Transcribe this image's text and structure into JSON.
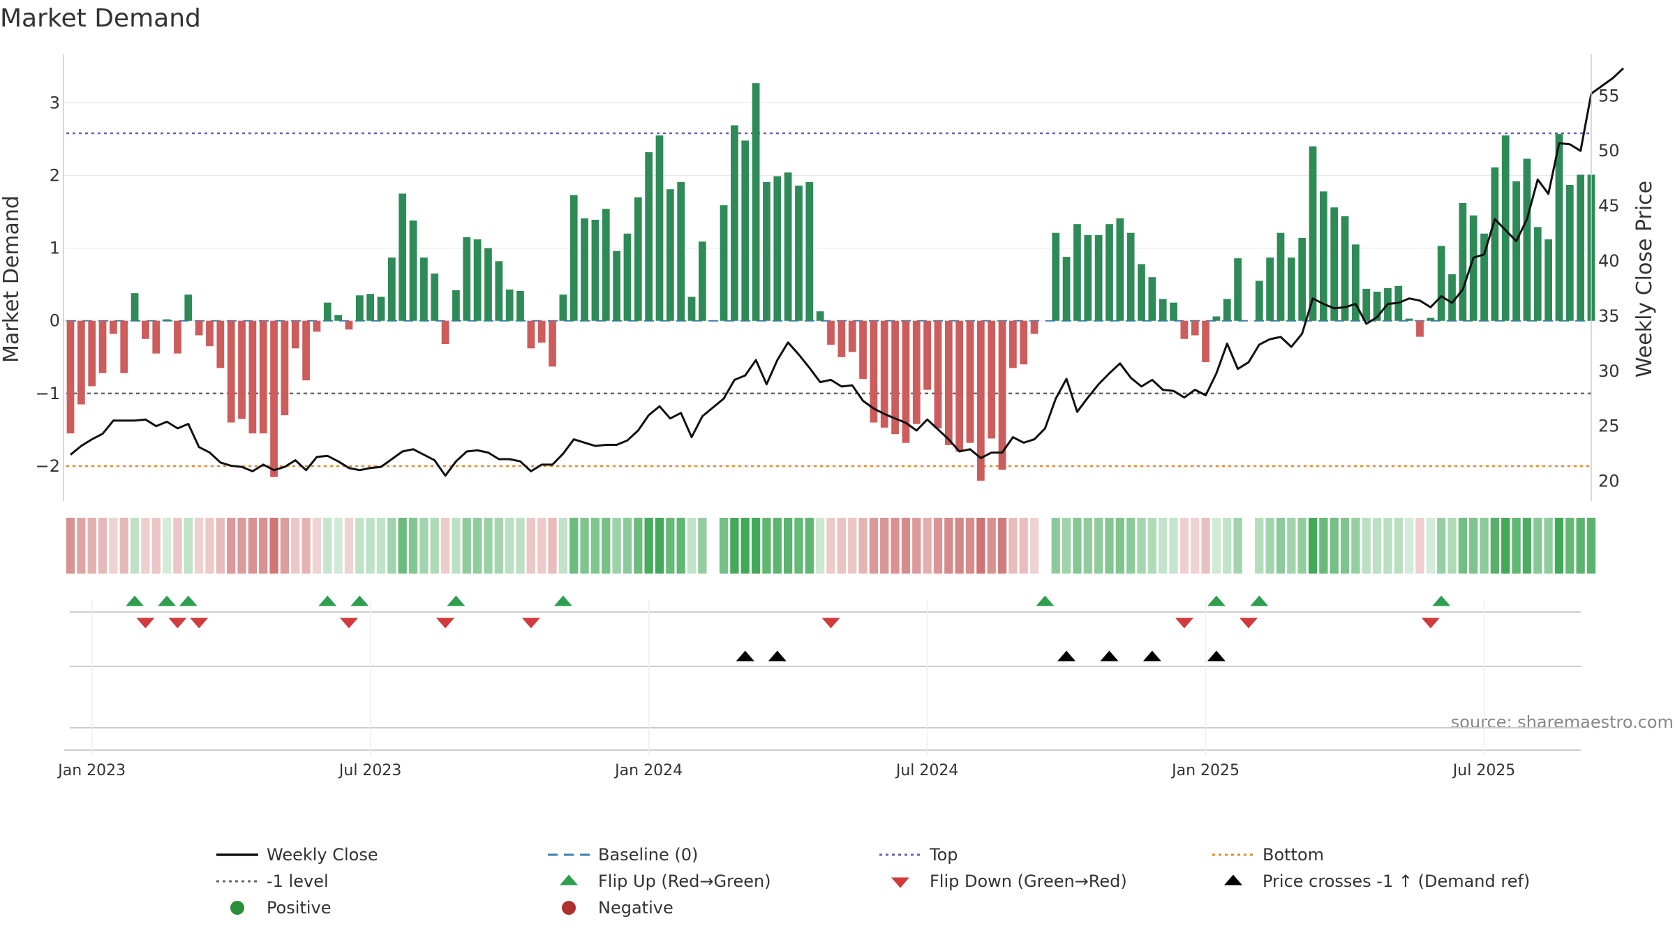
{
  "chart_data": {
    "type": "bar+line",
    "title": "Market Demand",
    "ylabel_left": "Market Demand",
    "ylabel_right": "Weekly Close Price",
    "ylim_left": [
      -2.48,
      3.55
    ],
    "ylim_right": [
      18.2,
      58.0
    ],
    "yticks_left": [
      -2,
      -1,
      0,
      1,
      2,
      3
    ],
    "yticks_right": [
      20,
      25,
      30,
      35,
      40,
      45,
      50,
      55
    ],
    "reference_lines": {
      "top": 2.58,
      "minus_one": -1,
      "bottom": -2,
      "baseline": 0
    },
    "x_start": "2022-12-19",
    "week_step_days": 7,
    "xtick_labels": [
      {
        "label": "Jan 2023",
        "week": 2
      },
      {
        "label": "Jul 2023",
        "week": 28
      },
      {
        "label": "Jan 2024",
        "week": 54
      },
      {
        "label": "Jul 2024",
        "week": 80
      },
      {
        "label": "Jan 2025",
        "week": 106
      },
      {
        "label": "Jul 2025",
        "week": 132
      }
    ],
    "demand": [
      -1.55,
      -1.15,
      -0.9,
      -0.72,
      -0.18,
      -0.72,
      0.38,
      -0.25,
      -0.45,
      0.02,
      -0.45,
      0.36,
      -0.2,
      -0.35,
      -0.65,
      -1.4,
      -1.35,
      -1.55,
      -1.55,
      -2.15,
      -1.3,
      -0.38,
      -0.82,
      -0.15,
      0.25,
      0.08,
      -0.12,
      0.35,
      0.37,
      0.33,
      0.87,
      1.75,
      1.38,
      0.87,
      0.65,
      -0.32,
      0.42,
      1.15,
      1.12,
      1.0,
      0.82,
      0.43,
      0.41,
      -0.38,
      -0.3,
      -0.63,
      0.36,
      1.73,
      1.41,
      1.39,
      1.54,
      0.96,
      1.2,
      1.7,
      2.32,
      2.55,
      1.81,
      1.91,
      0.33,
      1.09,
      null,
      1.59,
      2.69,
      2.48,
      3.27,
      1.91,
      1.99,
      2.04,
      1.86,
      1.91,
      0.13,
      -0.33,
      -0.5,
      -0.43,
      -0.8,
      -1.4,
      -1.47,
      -1.56,
      -1.68,
      -1.42,
      -0.95,
      -1.48,
      -1.71,
      -1.8,
      -1.68,
      -2.2,
      -1.62,
      -2.05,
      -0.65,
      -0.6,
      -0.18,
      null,
      1.21,
      0.88,
      1.33,
      1.18,
      1.18,
      1.33,
      1.41,
      1.21,
      0.78,
      0.6,
      0.3,
      0.25,
      -0.25,
      -0.2,
      -0.57,
      0.06,
      0.3,
      0.86,
      null,
      0.55,
      0.87,
      1.21,
      0.87,
      1.14,
      2.4,
      1.78,
      1.56,
      1.44,
      1.05,
      0.44,
      0.4,
      0.45,
      0.48,
      0.03,
      -0.22,
      0.04,
      1.03,
      0.64,
      1.62,
      1.45,
      1.2,
      2.11,
      2.55,
      1.92,
      2.23,
      1.29,
      1.12,
      2.57,
      1.87,
      2.01,
      2.01
    ],
    "close": [
      22.4,
      23.2,
      23.8,
      24.3,
      25.5,
      25.5,
      25.5,
      25.6,
      25.0,
      25.4,
      24.8,
      25.2,
      23.1,
      22.6,
      21.7,
      21.4,
      21.3,
      20.9,
      21.5,
      21.0,
      21.3,
      21.9,
      21.0,
      22.2,
      22.3,
      21.8,
      21.2,
      21.0,
      21.2,
      21.3,
      22.0,
      22.7,
      22.9,
      22.4,
      21.9,
      20.5,
      21.8,
      22.7,
      22.8,
      22.6,
      22.0,
      22.0,
      21.8,
      20.9,
      21.5,
      21.5,
      22.5,
      23.8,
      23.5,
      23.2,
      23.3,
      23.3,
      23.7,
      24.6,
      26.0,
      26.8,
      25.7,
      26.2,
      24.0,
      25.9,
      26.7,
      27.5,
      29.2,
      29.6,
      31.0,
      28.8,
      31.0,
      32.6,
      31.5,
      30.3,
      29.0,
      29.2,
      28.6,
      28.7,
      27.3,
      26.6,
      26.1,
      25.7,
      25.3,
      24.6,
      25.6,
      24.7,
      23.8,
      22.7,
      22.9,
      22.1,
      22.6,
      22.6,
      24.0,
      23.5,
      23.8,
      24.8,
      27.5,
      29.3,
      26.3,
      27.6,
      28.8,
      29.8,
      30.7,
      29.4,
      28.6,
      29.2,
      28.3,
      28.2,
      27.6,
      28.3,
      27.8,
      29.8,
      32.5,
      30.2,
      30.8,
      32.4,
      32.9,
      33.1,
      32.2,
      33.4,
      36.6,
      36.1,
      35.7,
      35.8,
      36.1,
      34.3,
      34.9,
      36.1,
      36.2,
      36.6,
      36.4,
      35.8,
      36.8,
      36.2,
      37.4,
      40.3,
      40.6,
      43.8,
      42.8,
      41.8,
      43.8,
      47.4,
      46.1,
      50.7,
      50.6,
      50.0,
      55.2,
      55.9,
      56.6,
      57.5
    ],
    "flip_up_weeks": [
      6,
      9,
      11,
      24,
      27,
      36,
      46,
      91,
      107,
      111,
      128
    ],
    "flip_down_weeks": [
      7,
      10,
      12,
      26,
      35,
      43,
      71,
      104,
      110,
      127
    ],
    "price_cross_weeks": [
      63,
      66,
      93,
      97,
      101,
      107
    ],
    "source": "source: sharemaestro.com",
    "legend": [
      {
        "label": "Weekly Close",
        "marker": "solid-line",
        "color": "#111111"
      },
      {
        "label": "Baseline (0)",
        "marker": "dash-line",
        "color": "#3a7fb5"
      },
      {
        "label": "Top",
        "marker": "dot-line",
        "color": "#6a5fb3"
      },
      {
        "label": "Bottom",
        "marker": "dot-line",
        "color": "#e08a2a"
      },
      {
        "label": "-1 level",
        "marker": "dot-line",
        "color": "#666666"
      },
      {
        "label": "Flip Up (Red→Green)",
        "marker": "triangle-up",
        "color": "#2e9e4f"
      },
      {
        "label": "Flip Down (Green→Red)",
        "marker": "triangle-down",
        "color": "#d13b3b"
      },
      {
        "label": "Price crosses -1 ↑ (Demand ref)",
        "marker": "triangle-up",
        "color": "#000000"
      },
      {
        "label": "Positive",
        "marker": "circle",
        "color": "#2a8f3a"
      },
      {
        "label": "Negative",
        "marker": "circle",
        "color": "#b03030"
      }
    ],
    "colors": {
      "positive_bar": "#2e8b57",
      "negative_bar": "#cd5c5c",
      "grid": "#e6e6e6",
      "axis": "#cccccc"
    }
  }
}
